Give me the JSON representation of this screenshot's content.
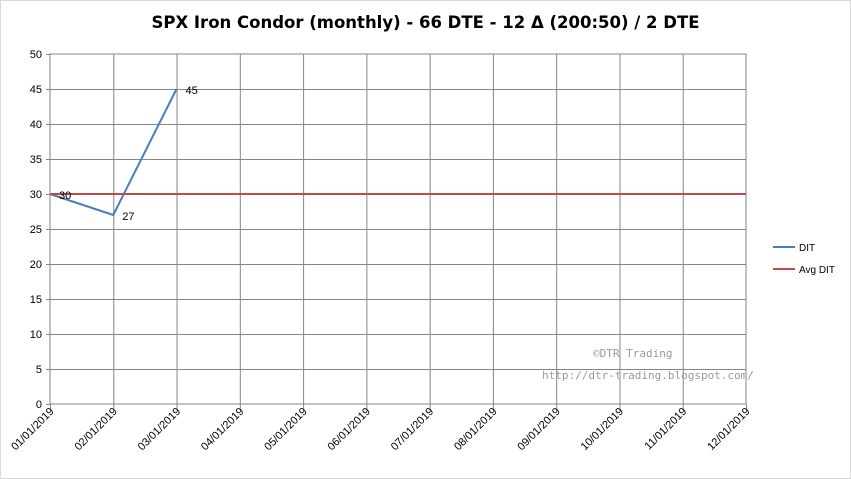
{
  "chart_data": {
    "type": "line",
    "title": "SPX Iron Condor (monthly) - 66 DTE - 12 Δ  (200:50) / 2 DTE",
    "xlabel": "",
    "ylabel": "",
    "ylim": [
      0,
      50
    ],
    "yticks": [
      0,
      5,
      10,
      15,
      20,
      25,
      30,
      35,
      40,
      45,
      50
    ],
    "categories": [
      "01/01/2019",
      "02/01/2019",
      "03/01/2019",
      "04/01/2019",
      "05/01/2019",
      "06/01/2019",
      "07/01/2019",
      "08/01/2019",
      "09/01/2019",
      "10/01/2019",
      "11/01/2019",
      "12/01/2019"
    ],
    "grid": true,
    "legend_position": "right",
    "series": [
      {
        "name": "DIT",
        "color": "#4a7ebb",
        "x": [
          "01/01/2019",
          "02/01/2019",
          "03/01/2019"
        ],
        "values": [
          30,
          27,
          45
        ],
        "data_labels": [
          "30",
          "27",
          "45"
        ]
      },
      {
        "name": "Avg DIT",
        "color": "#be4b48",
        "x": [
          "01/01/2019",
          "12/01/2019"
        ],
        "values": [
          30,
          30
        ]
      }
    ]
  },
  "watermark": {
    "line1": "©DTR Trading",
    "line2": "http://dtr-trading.blogspot.com/"
  }
}
